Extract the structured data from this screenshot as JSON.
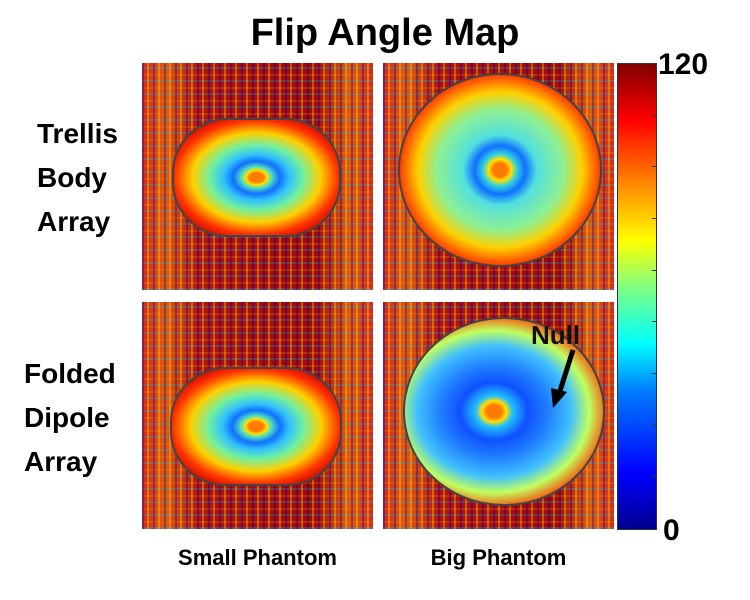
{
  "title": "Flip Angle Map",
  "rows": [
    {
      "label_lines": [
        "Trellis",
        "Body",
        "Array"
      ]
    },
    {
      "label_lines": [
        "Folded",
        "Dipole",
        "Array"
      ]
    }
  ],
  "columns": [
    "Small Phantom",
    "Big Phantom"
  ],
  "colorbar": {
    "max_label": "120",
    "min_label": "0",
    "max": 120,
    "min": 0,
    "colormap": "jet"
  },
  "annotation": {
    "text": "Null"
  }
}
